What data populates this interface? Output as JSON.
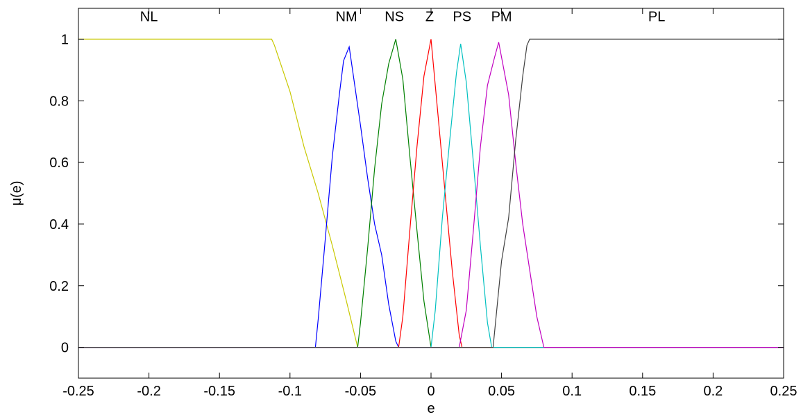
{
  "chart_data": {
    "type": "line",
    "title": "",
    "xlabel": "e",
    "ylabel": "μ(e)",
    "xlim": [
      -0.25,
      0.25
    ],
    "ylim": [
      -0.1,
      1.1
    ],
    "grid": false,
    "x_ticks": [
      -0.25,
      -0.2,
      -0.15,
      -0.1,
      -0.05,
      0,
      0.05,
      0.1,
      0.15,
      0.2,
      0.25
    ],
    "x_tick_labels": [
      "-0.25",
      "-0.2",
      "-0.15",
      "-0.1",
      "-0.05",
      "0",
      "0.05",
      "0.1",
      "0.15",
      "0.2",
      "0.25"
    ],
    "y_ticks": [
      0,
      0.2,
      0.4,
      0.6,
      0.8,
      1
    ],
    "y_tick_labels": [
      "0",
      "0.2",
      "0.4",
      "0.6",
      "0.8",
      "1"
    ],
    "series": [
      {
        "name": "NL",
        "color": "#c8c800",
        "points": [
          [
            -0.25,
            1
          ],
          [
            -0.2,
            1
          ],
          [
            -0.15,
            1
          ],
          [
            -0.113,
            1
          ],
          [
            -0.111,
            0.98
          ],
          [
            -0.1,
            0.83
          ],
          [
            -0.09,
            0.65
          ],
          [
            -0.08,
            0.5
          ],
          [
            -0.07,
            0.33
          ],
          [
            -0.06,
            0.15
          ],
          [
            -0.052,
            0
          ],
          [
            -0.03,
            0
          ],
          [
            0,
            0
          ],
          [
            0.1,
            0
          ],
          [
            0.25,
            0
          ]
        ]
      },
      {
        "name": "NM",
        "color": "#0000ff",
        "points": [
          [
            -0.25,
            0
          ],
          [
            -0.1,
            0
          ],
          [
            -0.082,
            0
          ],
          [
            -0.08,
            0.09
          ],
          [
            -0.075,
            0.35
          ],
          [
            -0.07,
            0.62
          ],
          [
            -0.065,
            0.82
          ],
          [
            -0.062,
            0.93
          ],
          [
            -0.058,
            0.975
          ],
          [
            -0.055,
            0.88
          ],
          [
            -0.05,
            0.72
          ],
          [
            -0.045,
            0.55
          ],
          [
            -0.04,
            0.4
          ],
          [
            -0.035,
            0.3
          ],
          [
            -0.03,
            0.14
          ],
          [
            -0.025,
            0.02
          ],
          [
            -0.023,
            0
          ],
          [
            0,
            0
          ],
          [
            0.25,
            0
          ]
        ]
      },
      {
        "name": "NS",
        "color": "#008000",
        "points": [
          [
            -0.25,
            0
          ],
          [
            -0.052,
            0
          ],
          [
            -0.05,
            0.08
          ],
          [
            -0.045,
            0.32
          ],
          [
            -0.04,
            0.58
          ],
          [
            -0.035,
            0.79
          ],
          [
            -0.03,
            0.92
          ],
          [
            -0.025,
            1.0
          ],
          [
            -0.02,
            0.87
          ],
          [
            -0.015,
            0.62
          ],
          [
            -0.01,
            0.38
          ],
          [
            -0.005,
            0.15
          ],
          [
            0,
            0
          ],
          [
            0.1,
            0
          ],
          [
            0.25,
            0
          ]
        ]
      },
      {
        "name": "Z",
        "color": "#ff0000",
        "points": [
          [
            -0.25,
            0
          ],
          [
            -0.023,
            0
          ],
          [
            -0.02,
            0.1
          ],
          [
            -0.015,
            0.38
          ],
          [
            -0.01,
            0.65
          ],
          [
            -0.005,
            0.88
          ],
          [
            0,
            1.0
          ],
          [
            0.005,
            0.75
          ],
          [
            0.01,
            0.5
          ],
          [
            0.015,
            0.25
          ],
          [
            0.02,
            0.04
          ],
          [
            0.022,
            0
          ],
          [
            0.25,
            0
          ]
        ]
      },
      {
        "name": "PS",
        "color": "#00c0c0",
        "points": [
          [
            -0.25,
            0
          ],
          [
            0,
            0
          ],
          [
            0.003,
            0.12
          ],
          [
            0.008,
            0.42
          ],
          [
            0.013,
            0.66
          ],
          [
            0.018,
            0.89
          ],
          [
            0.021,
            0.985
          ],
          [
            0.025,
            0.86
          ],
          [
            0.03,
            0.6
          ],
          [
            0.035,
            0.33
          ],
          [
            0.04,
            0.08
          ],
          [
            0.043,
            0
          ],
          [
            0.25,
            0
          ]
        ]
      },
      {
        "name": "PM",
        "color": "#c000c0",
        "points": [
          [
            -0.25,
            0
          ],
          [
            0.02,
            0
          ],
          [
            0.025,
            0.12
          ],
          [
            0.03,
            0.38
          ],
          [
            0.035,
            0.65
          ],
          [
            0.04,
            0.85
          ],
          [
            0.045,
            0.94
          ],
          [
            0.048,
            0.99
          ],
          [
            0.055,
            0.82
          ],
          [
            0.06,
            0.6
          ],
          [
            0.065,
            0.4
          ],
          [
            0.07,
            0.25
          ],
          [
            0.075,
            0.1
          ],
          [
            0.08,
            0
          ],
          [
            0.1,
            0
          ],
          [
            0.25,
            0
          ]
        ]
      },
      {
        "name": "PL",
        "color": "#404040",
        "points": [
          [
            -0.25,
            0
          ],
          [
            0,
            0
          ],
          [
            0.04,
            0
          ],
          [
            0.044,
            0
          ],
          [
            0.047,
            0.14
          ],
          [
            0.05,
            0.28
          ],
          [
            0.055,
            0.42
          ],
          [
            0.06,
            0.67
          ],
          [
            0.065,
            0.88
          ],
          [
            0.068,
            0.98
          ],
          [
            0.07,
            1
          ],
          [
            0.1,
            1
          ],
          [
            0.15,
            1
          ],
          [
            0.2,
            1
          ],
          [
            0.25,
            1
          ]
        ]
      }
    ],
    "annotations": [
      {
        "text": "NL",
        "x": -0.2,
        "y": 1.058
      },
      {
        "text": "NM",
        "x": -0.06,
        "y": 1.058
      },
      {
        "text": "NS",
        "x": -0.026,
        "y": 1.058
      },
      {
        "text": "Z",
        "x": -0.001,
        "y": 1.058
      },
      {
        "text": "PS",
        "x": 0.022,
        "y": 1.058
      },
      {
        "text": "PM",
        "x": 0.05,
        "y": 1.058
      },
      {
        "text": "PL",
        "x": 0.16,
        "y": 1.058
      }
    ]
  }
}
